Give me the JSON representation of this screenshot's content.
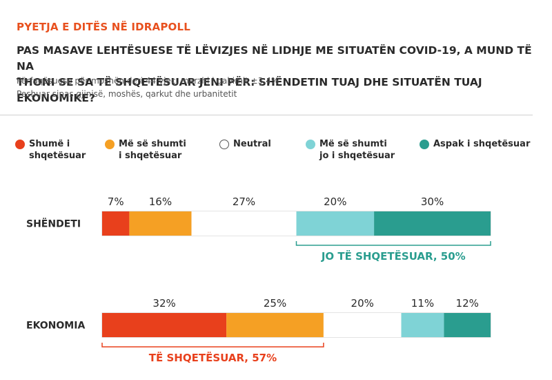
{
  "kicker": "PYETJA E DITËS NË IDRAPOLL",
  "question_line1": "PAS MASAVE LEHTËSUESE TË LËVIZJES NË LIDHJE ME SITUATËN COVID-19, A MUND TË NA",
  "question_line2": "THONI SE SA TË SHQETËSUAR JENI PËR: SHËNDETIN TUAJ DHE SITUATËN TUAJ EKONOMIKE?",
  "note1": "Përfaqësuese për moshën deri 44 vjeç, marzhi i gabimit ±3.4%",
  "note2": "Peshuar sipas gjinisë, moshës, qarkut dhe urbanitetit",
  "legend": [
    {
      "line1": "Shumë i",
      "line2": "shqetësuar",
      "color": "#e8401c"
    },
    {
      "line1": "Më së shumti",
      "line2": "i shqetësuar",
      "color": "#f5a024"
    },
    {
      "line1": "Neutral",
      "line2": "",
      "color": "#ffffff"
    },
    {
      "line1": "Më së shumti",
      "line2": "jo i shqetësuar",
      "color": "#7fd3d6"
    },
    {
      "line1": "Aspak i shqetësuar",
      "line2": "",
      "color": "#2a9d8f"
    }
  ],
  "chart_data": {
    "type": "bar",
    "stacked": true,
    "orientation": "horizontal",
    "categories": [
      "SHËNDETI",
      "EKONOMIA"
    ],
    "series": [
      {
        "name": "Shumë i shqetësuar",
        "values": [
          7,
          32
        ],
        "color": "#e8401c"
      },
      {
        "name": "Më së shumti i shqetësuar",
        "values": [
          16,
          25
        ],
        "color": "#f5a024"
      },
      {
        "name": "Neutral",
        "values": [
          27,
          20
        ],
        "color": "#ffffff"
      },
      {
        "name": "Më së shumti jo i shqetësuar",
        "values": [
          20,
          11
        ],
        "color": "#7fd3d6"
      },
      {
        "name": "Aspak i shqetësuar",
        "values": [
          30,
          12
        ],
        "color": "#2a9d8f"
      }
    ],
    "value_suffix": "%",
    "annotations": [
      {
        "category": "SHËNDETI",
        "text": "JO TË SHQETËSUAR, 50%",
        "from_series": 3,
        "to_series": 4,
        "position": "below",
        "color": "#2a9d8f"
      },
      {
        "category": "EKONOMIA",
        "text": "TË SHQETËSUAR, 57%",
        "from_series": 0,
        "to_series": 1,
        "position": "below",
        "color": "#e8401c"
      }
    ]
  }
}
